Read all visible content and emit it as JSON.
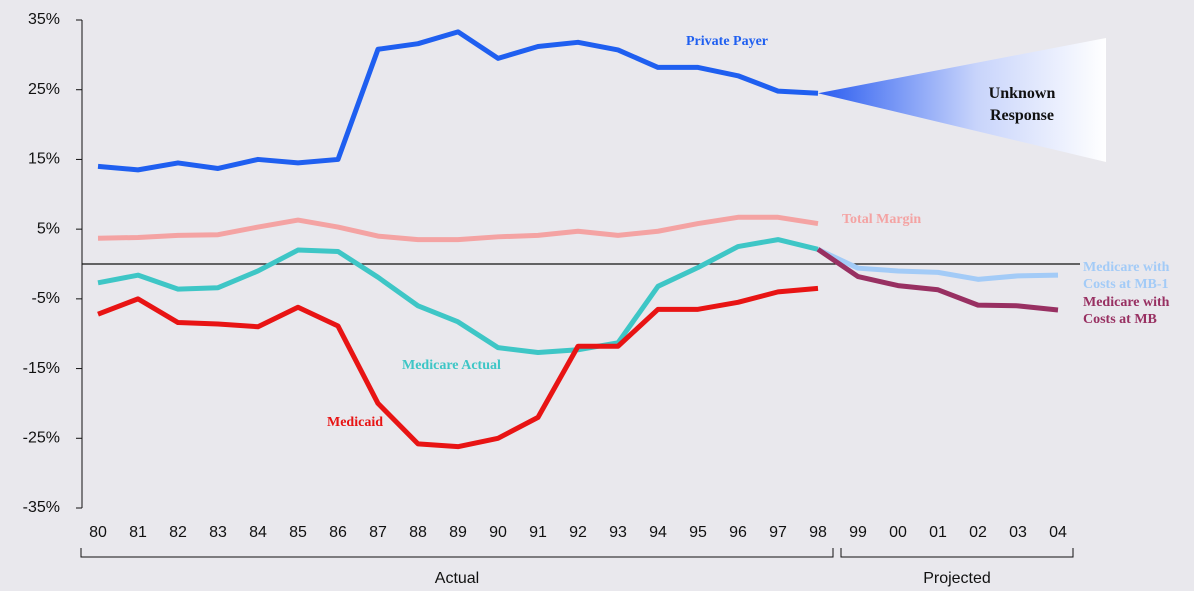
{
  "chart_data": {
    "type": "line",
    "categories": [
      "80",
      "81",
      "82",
      "83",
      "84",
      "85",
      "86",
      "87",
      "88",
      "89",
      "90",
      "91",
      "92",
      "93",
      "94",
      "95",
      "96",
      "97",
      "98",
      "99",
      "00",
      "01",
      "02",
      "03",
      "04"
    ],
    "series": [
      {
        "name": "Private Payer",
        "color": "#1f5ff0",
        "values": [
          14,
          13.5,
          14.5,
          13.7,
          15,
          14.5,
          15,
          30.8,
          31.6,
          33.3,
          29.5,
          31.2,
          31.8,
          30.7,
          28.2,
          28.2,
          27,
          24.8,
          24.5,
          null,
          null,
          null,
          null,
          null,
          null
        ]
      },
      {
        "name": "Total Margin",
        "color": "#f4a3a3",
        "values": [
          3.7,
          3.8,
          4.1,
          4.2,
          5.3,
          6.3,
          5.3,
          4,
          3.5,
          3.5,
          3.9,
          4.1,
          4.7,
          4.1,
          4.7,
          5.8,
          6.7,
          6.7,
          5.8,
          null,
          null,
          null,
          null,
          null,
          null
        ]
      },
      {
        "name": "Medicare Actual",
        "color": "#3ec6c6",
        "values": [
          -2.7,
          -1.6,
          -3.6,
          -3.4,
          -1,
          2,
          1.8,
          -1.9,
          -6,
          -8.3,
          -12,
          -12.7,
          -12.3,
          -11.3,
          -3.2,
          -0.5,
          2.5,
          3.5,
          2.1,
          null,
          null,
          null,
          null,
          null,
          null
        ]
      },
      {
        "name": "Medicaid",
        "color": "#e81414",
        "values": [
          -7.2,
          -5,
          -8.4,
          -8.6,
          -9,
          -6.2,
          -8.9,
          -20,
          -25.8,
          -26.2,
          -25,
          -22,
          -11.8,
          -11.8,
          -6.5,
          -6.5,
          -5.5,
          -4,
          -3.5,
          null,
          null,
          null,
          null,
          null,
          null
        ]
      },
      {
        "name": "Medicare with Costs at MB-1",
        "color": "#a3cbf7",
        "values": [
          null,
          null,
          null,
          null,
          null,
          null,
          null,
          null,
          null,
          null,
          null,
          null,
          null,
          null,
          null,
          null,
          null,
          null,
          2.1,
          -0.6,
          -1,
          -1.2,
          -2.2,
          -1.7,
          -1.6
        ]
      },
      {
        "name": "Medicare with Costs at MB",
        "color": "#983062",
        "values": [
          null,
          null,
          null,
          null,
          null,
          null,
          null,
          null,
          null,
          null,
          null,
          null,
          null,
          null,
          null,
          null,
          null,
          null,
          2.1,
          -1.8,
          -3.1,
          -3.7,
          -5.9,
          -6,
          -6.6
        ]
      }
    ],
    "ylim": [
      -35,
      35
    ],
    "yticks": [
      {
        "value": 35,
        "label": "35%"
      },
      {
        "value": 25,
        "label": "25%"
      },
      {
        "value": 15,
        "label": "15%"
      },
      {
        "value": 5,
        "label": "5%"
      },
      {
        "value": -5,
        "label": "-5%"
      },
      {
        "value": -15,
        "label": "-15%"
      },
      {
        "value": -25,
        "label": "-25%"
      },
      {
        "value": -35,
        "label": "-35%"
      }
    ],
    "zero_line": true,
    "annotation": "Unknown Response",
    "groups": [
      {
        "label": "Actual",
        "start": "80",
        "end": "98"
      },
      {
        "label": "Projected",
        "start": "99",
        "end": "04"
      }
    ]
  }
}
